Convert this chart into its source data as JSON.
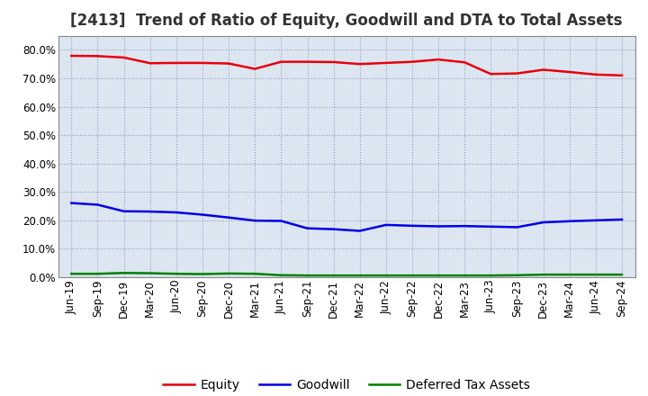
{
  "title": "[2413]  Trend of Ratio of Equity, Goodwill and DTA to Total Assets",
  "labels": [
    "Jun-19",
    "Sep-19",
    "Dec-19",
    "Mar-20",
    "Jun-20",
    "Sep-20",
    "Dec-20",
    "Mar-21",
    "Jun-21",
    "Sep-21",
    "Dec-21",
    "Mar-22",
    "Jun-22",
    "Sep-22",
    "Dec-22",
    "Mar-23",
    "Jun-23",
    "Sep-23",
    "Dec-23",
    "Mar-24",
    "Jun-24",
    "Sep-24"
  ],
  "equity": [
    0.779,
    0.778,
    0.773,
    0.753,
    0.754,
    0.754,
    0.752,
    0.733,
    0.758,
    0.758,
    0.757,
    0.75,
    0.754,
    0.758,
    0.766,
    0.756,
    0.715,
    0.717,
    0.73,
    0.722,
    0.713,
    0.71
  ],
  "goodwill": [
    0.261,
    0.255,
    0.232,
    0.231,
    0.228,
    0.22,
    0.21,
    0.199,
    0.198,
    0.172,
    0.169,
    0.163,
    0.184,
    0.181,
    0.179,
    0.18,
    0.178,
    0.176,
    0.193,
    0.197,
    0.2,
    0.203
  ],
  "dta": [
    0.012,
    0.012,
    0.015,
    0.014,
    0.012,
    0.011,
    0.013,
    0.012,
    0.007,
    0.006,
    0.006,
    0.006,
    0.006,
    0.006,
    0.006,
    0.006,
    0.006,
    0.007,
    0.009,
    0.009,
    0.009,
    0.009
  ],
  "equity_color": "#e8000a",
  "goodwill_color": "#0000e8",
  "dta_color": "#008000",
  "ylim": [
    0.0,
    0.85
  ],
  "yticks": [
    0.0,
    0.1,
    0.2,
    0.3,
    0.4,
    0.5,
    0.6,
    0.7,
    0.8
  ],
  "bg_color": "#ffffff",
  "plot_bg_color": "#dce6f1",
  "grid_color": "#9999bb",
  "title_fontsize": 12,
  "tick_fontsize": 8.5,
  "legend_labels": [
    "Equity",
    "Goodwill",
    "Deferred Tax Assets"
  ]
}
